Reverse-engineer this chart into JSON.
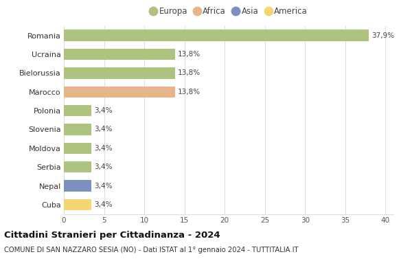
{
  "categories": [
    "Romania",
    "Ucraina",
    "Bielorussia",
    "Marocco",
    "Polonia",
    "Slovenia",
    "Moldova",
    "Serbia",
    "Nepal",
    "Cuba"
  ],
  "values": [
    37.9,
    13.8,
    13.8,
    13.8,
    3.4,
    3.4,
    3.4,
    3.4,
    3.4,
    3.4
  ],
  "labels": [
    "37,9%",
    "13,8%",
    "13,8%",
    "13,8%",
    "3,4%",
    "3,4%",
    "3,4%",
    "3,4%",
    "3,4%",
    "3,4%"
  ],
  "colors": [
    "#aec47e",
    "#aec47e",
    "#aec47e",
    "#e8b48a",
    "#aec47e",
    "#aec47e",
    "#aec47e",
    "#aec47e",
    "#7b90c0",
    "#f5d472"
  ],
  "legend_labels": [
    "Europa",
    "Africa",
    "Asia",
    "America"
  ],
  "legend_colors": [
    "#aec47e",
    "#e8b48a",
    "#7b90c0",
    "#f5d472"
  ],
  "title": "Cittadini Stranieri per Cittadinanza - 2024",
  "subtitle": "COMUNE DI SAN NAZZARO SESIA (NO) - Dati ISTAT al 1° gennaio 2024 - TUTTITALIA.IT",
  "xlim": [
    0,
    41
  ],
  "xticks": [
    0,
    5,
    10,
    15,
    20,
    25,
    30,
    35,
    40
  ],
  "background_color": "#ffffff",
  "grid_color": "#d8d8d8",
  "bar_height": 0.6
}
